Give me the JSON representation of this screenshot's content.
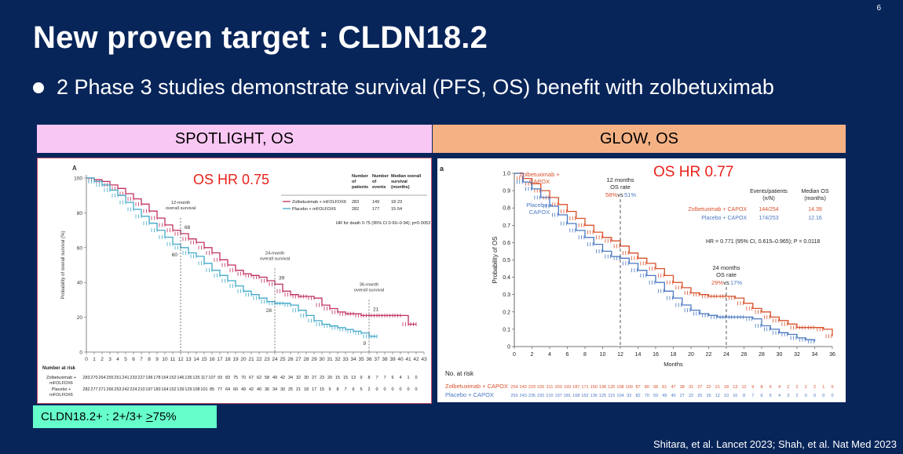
{
  "slide": {
    "number": "6",
    "title": "New proven target : CLDN18.2",
    "bullet": "2 Phase 3 studies demonstrate survival (PFS, OS) benefit with zolbetuximab",
    "left_header": "SPOTLIGHT, OS",
    "right_header": "GLOW, OS",
    "tag_prefix": "CLDN18.2+ : 2+/3+ ",
    "tag_ge": ">",
    "tag_suffix": "75%",
    "citation": "Shitara, et al. Lancet 2023; Shah, et al. Nat Med 2023",
    "colors": {
      "background": "#08255a",
      "pink": "#f9c7f4",
      "orange": "#f4b183",
      "teal": "#66ffcc",
      "hr_red": "#e8231b"
    }
  },
  "chart_data": [
    {
      "type": "line",
      "panel_label": "A",
      "hr_text": "OS HR 0.75",
      "ylabel": "Probability of overall survival (%)",
      "xlabel": "",
      "xlim": [
        0,
        43
      ],
      "ylim": [
        0,
        100
      ],
      "xticks": [
        0,
        1,
        2,
        3,
        4,
        5,
        6,
        7,
        8,
        9,
        10,
        11,
        12,
        13,
        14,
        15,
        16,
        17,
        18,
        19,
        20,
        21,
        22,
        23,
        24,
        25,
        26,
        27,
        28,
        29,
        30,
        31,
        32,
        33,
        34,
        35,
        36,
        37,
        38,
        39,
        40,
        41,
        42,
        43
      ],
      "yticks": [
        0,
        20,
        40,
        60,
        80,
        100
      ],
      "table_headers": [
        "Number of patients",
        "Number of events",
        "Median overall survival (months)"
      ],
      "series": [
        {
          "name": "Zolbetuximab + mFOLFOX6",
          "color": "#c0305c",
          "patients": "283",
          "events": "149",
          "median": "18·23",
          "x": [
            0,
            1,
            2,
            3,
            4,
            5,
            6,
            7,
            8,
            9,
            10,
            11,
            12,
            13,
            14,
            15,
            16,
            17,
            18,
            19,
            20,
            21,
            22,
            23,
            24,
            25,
            26,
            27,
            28,
            29,
            30,
            31,
            32,
            33,
            34,
            35,
            36,
            37,
            38,
            39,
            40,
            41,
            42
          ],
          "y": [
            100,
            99,
            98,
            96,
            94,
            91,
            88,
            85,
            81,
            77,
            73,
            70,
            68,
            65,
            63,
            60,
            57,
            53,
            50,
            47,
            45,
            44,
            43,
            41,
            39,
            35,
            33,
            32,
            32,
            31,
            27,
            25,
            23,
            22,
            22,
            21,
            21,
            21,
            21,
            21,
            21,
            16,
            16
          ]
        },
        {
          "name": "Placebo + mFOLFOX6",
          "color": "#3fa8c9",
          "patients": "282",
          "events": "177",
          "median": "15·54",
          "x": [
            0,
            1,
            2,
            3,
            4,
            5,
            6,
            7,
            8,
            9,
            10,
            11,
            12,
            13,
            14,
            15,
            16,
            17,
            18,
            19,
            20,
            21,
            22,
            23,
            24,
            25,
            26,
            27,
            28,
            29,
            30,
            31,
            32,
            33,
            34,
            35,
            36,
            37
          ],
          "y": [
            100,
            98,
            96,
            93,
            90,
            86,
            82,
            78,
            74,
            70,
            66,
            62,
            60,
            57,
            55,
            51,
            47,
            44,
            41,
            38,
            35,
            33,
            31,
            29,
            28,
            28,
            27,
            24,
            21,
            18,
            16,
            15,
            14,
            13,
            12,
            11,
            9,
            9
          ]
        }
      ],
      "annotations": [
        {
          "text_lines": [
            "12-month",
            "overall survival"
          ],
          "x": 12,
          "values": [
            "68",
            "60"
          ]
        },
        {
          "text_lines": [
            "24-month",
            "overall survival"
          ],
          "x": 24,
          "values": [
            "39",
            "28"
          ]
        },
        {
          "text_lines": [
            "36-month",
            "overall survival"
          ],
          "x": 36,
          "values": [
            "21",
            "9"
          ]
        }
      ],
      "hr_footnote": "HR for death 0·75 (95% CI 0·60–0·94); p=0·0053",
      "risk": {
        "title": "Number at risk",
        "rows": [
          {
            "label_lines": [
              "Zolbetuximab +",
              "mFOLFOX6"
            ],
            "values": [
              "283",
              "270",
              "264",
              "255",
              "251",
              "241",
              "233",
              "227",
              "196",
              "178",
              "164",
              "152",
              "146",
              "135",
              "125",
              "117",
              "107",
              "93",
              "83",
              "75",
              "70",
              "67",
              "62",
              "58",
              "49",
              "42",
              "34",
              "32",
              "30",
              "27",
              "23",
              "20",
              "15",
              "15",
              "13",
              "9",
              "8",
              "7",
              "7",
              "6",
              "4",
              "1",
              "0"
            ]
          },
          {
            "label_lines": [
              "Placebo +",
              "mFOLFOX6"
            ],
            "values": [
              "282",
              "277",
              "271",
              "266",
              "253",
              "242",
              "224",
              "210",
              "197",
              "183",
              "164",
              "152",
              "139",
              "129",
              "108",
              "101",
              "85",
              "77",
              "64",
              "60",
              "49",
              "42",
              "40",
              "36",
              "34",
              "30",
              "25",
              "21",
              "18",
              "17",
              "15",
              "9",
              "8",
              "7",
              "6",
              "5",
              "2",
              "0",
              "0",
              "0",
              "0",
              "0",
              "0"
            ]
          }
        ]
      }
    },
    {
      "type": "line",
      "panel_label": "a",
      "hr_text": "OS HR 0.77",
      "ylabel": "Probability of OS",
      "xlabel": "Months",
      "xlim": [
        0,
        36
      ],
      "ylim": [
        0,
        1.0
      ],
      "xticks": [
        0,
        2,
        4,
        6,
        8,
        10,
        12,
        14,
        16,
        18,
        20,
        22,
        24,
        26,
        28,
        30,
        32,
        34,
        36
      ],
      "yticks": [
        0,
        0.1,
        0.2,
        0.3,
        0.4,
        0.5,
        0.6,
        0.7,
        0.8,
        0.9,
        1.0
      ],
      "table_headers": [
        "Events/patients (n/N)",
        "Median OS (months)"
      ],
      "series": [
        {
          "name": "Zolbetuximab + CAPOX",
          "color": "#d9512c",
          "events_patients": "144/254",
          "median": "14.39",
          "x": [
            0,
            1,
            2,
            3,
            4,
            5,
            6,
            7,
            8,
            9,
            10,
            11,
            12,
            13,
            14,
            15,
            16,
            17,
            18,
            19,
            20,
            21,
            22,
            23,
            24,
            25,
            26,
            27,
            28,
            29,
            30,
            31,
            32,
            33,
            34,
            35,
            36
          ],
          "y": [
            1.0,
            0.97,
            0.94,
            0.9,
            0.86,
            0.82,
            0.78,
            0.74,
            0.7,
            0.66,
            0.63,
            0.61,
            0.58,
            0.54,
            0.51,
            0.48,
            0.45,
            0.41,
            0.37,
            0.34,
            0.31,
            0.3,
            0.29,
            0.29,
            0.29,
            0.28,
            0.25,
            0.22,
            0.2,
            0.17,
            0.15,
            0.13,
            0.11,
            0.11,
            0.11,
            0.1,
            0.06
          ]
        },
        {
          "name": "Placebo + CAPOX",
          "color": "#4a78c2",
          "events_patients": "174/253",
          "median": "12.16",
          "x": [
            0,
            1,
            2,
            3,
            4,
            5,
            6,
            7,
            8,
            9,
            10,
            11,
            12,
            13,
            14,
            15,
            16,
            17,
            18,
            19,
            20,
            21,
            22,
            23,
            24,
            25,
            26,
            27,
            28,
            29,
            30,
            31,
            32,
            33,
            34
          ],
          "y": [
            1.0,
            0.95,
            0.91,
            0.86,
            0.81,
            0.76,
            0.71,
            0.67,
            0.63,
            0.59,
            0.55,
            0.52,
            0.51,
            0.48,
            0.44,
            0.41,
            0.37,
            0.32,
            0.28,
            0.24,
            0.21,
            0.19,
            0.18,
            0.17,
            0.17,
            0.17,
            0.17,
            0.16,
            0.12,
            0.1,
            0.08,
            0.07,
            0.05,
            0.04,
            0.03
          ]
        }
      ],
      "annotations": [
        {
          "text_lines": [
            "12 months",
            "OS rate"
          ],
          "x": 12,
          "values": [
            "58%",
            "51%"
          ]
        },
        {
          "text_lines": [
            "24 months",
            "OS rate"
          ],
          "x": 24,
          "values": [
            "29%",
            "17%"
          ]
        }
      ],
      "vs_text": "vs",
      "series_labels": [
        [
          "Zolbetuximab +",
          "CAPOX"
        ],
        [
          "Placebo +",
          "CAPOX"
        ]
      ],
      "hr_footnote": "HR = 0.771 (95% CI, 0.615–0.965); P = 0.0118",
      "risk": {
        "title": "No. at risk",
        "rows": [
          {
            "label": "Zolbetuximab + CAPOX",
            "values": [
              "254",
              "243",
              "233",
              "226",
              "211",
              "203",
              "193",
              "187",
              "171",
              "150",
              "138",
              "125",
              "108",
              "100",
              "87",
              "80",
              "68",
              "61",
              "47",
              "38",
              "31",
              "27",
              "22",
              "21",
              "18",
              "13",
              "12",
              "9",
              "8",
              "6",
              "4",
              "2",
              "2",
              "2",
              "2",
              "1",
              "0"
            ]
          },
          {
            "label": "Placebo + CAPOX",
            "values": [
              "253",
              "243",
              "235",
              "220",
              "210",
              "197",
              "181",
              "168",
              "152",
              "136",
              "125",
              "115",
              "104",
              "92",
              "82",
              "70",
              "59",
              "49",
              "40",
              "27",
              "22",
              "20",
              "16",
              "12",
              "10",
              "10",
              "8",
              "7",
              "6",
              "5",
              "4",
              "3",
              "2",
              "0",
              "0",
              "0",
              "0"
            ]
          }
        ]
      }
    }
  ]
}
